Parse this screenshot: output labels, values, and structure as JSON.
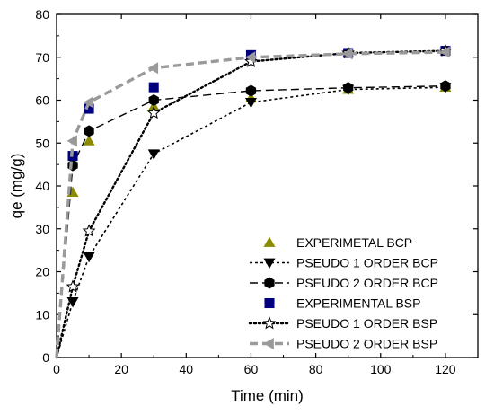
{
  "chart_data": {
    "type": "scatter",
    "title": "",
    "xlabel": "Time (min)",
    "ylabel": "qe (mg/g)",
    "xlim": [
      0,
      130
    ],
    "ylim": [
      0,
      80
    ],
    "xticks": [
      0,
      20,
      40,
      60,
      80,
      100,
      120
    ],
    "yticks": [
      0,
      10,
      20,
      30,
      40,
      50,
      60,
      70,
      80
    ],
    "grid": false,
    "legend_position": "bottom-right",
    "series": [
      {
        "name": "EXPERIMETAL BCP",
        "kind": "markers",
        "marker": "triangle-up",
        "color": "#8b8b00",
        "x": [
          5,
          10,
          30,
          60,
          90,
          120
        ],
        "y": [
          38.5,
          50.5,
          58.5,
          60.5,
          62.5,
          63.0
        ]
      },
      {
        "name": "PSEUDO 1 ORDER BCP",
        "kind": "line",
        "line_style": "dash-dot-fine",
        "marker": "triangle-down",
        "color": "#000000",
        "x": [
          0,
          5,
          10,
          30,
          60,
          90,
          120
        ],
        "y": [
          0,
          13.0,
          23.5,
          47.5,
          59.5,
          62.5,
          63.0
        ]
      },
      {
        "name": "PSEUDO 2 ORDER BCP",
        "kind": "line",
        "line_style": "dashed",
        "marker": "hexagon",
        "color": "#000000",
        "x": [
          0,
          5,
          10,
          30,
          60,
          90,
          120
        ],
        "y": [
          0,
          44.8,
          52.8,
          60.0,
          62.2,
          62.9,
          63.3
        ]
      },
      {
        "name": "EXPERIMENTAL BSP",
        "kind": "markers",
        "marker": "square",
        "color": "#00007f",
        "x": [
          5,
          10,
          30,
          60,
          90,
          120
        ],
        "y": [
          47.0,
          58.0,
          63.0,
          70.5,
          71.0,
          71.5
        ]
      },
      {
        "name": "PSEUDO 1 ORDER BSP",
        "kind": "line",
        "line_style": "dotted",
        "marker": "star",
        "color": "#000000",
        "x": [
          0,
          5,
          10,
          30,
          60,
          90,
          120
        ],
        "y": [
          0,
          16.5,
          29.5,
          57.0,
          69.0,
          71.0,
          71.5
        ]
      },
      {
        "name": "PSEUDO 2 ORDER BSP",
        "kind": "line",
        "line_style": "dashed-thick",
        "marker": "triangle-left",
        "color": "#9a9a9a",
        "x": [
          0,
          5,
          10,
          30,
          60,
          90,
          120
        ],
        "y": [
          0,
          50.5,
          59.5,
          67.5,
          70.0,
          70.8,
          71.2
        ]
      }
    ]
  }
}
